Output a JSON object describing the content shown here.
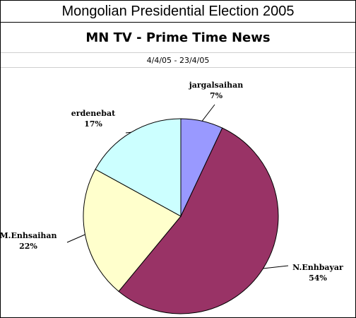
{
  "header": {
    "title": "Mongolian Presidential Election 2005",
    "subtitle": "MN TV - Prime Time News",
    "date_range": "4/4/05 - 23/4/05"
  },
  "chart_data": {
    "type": "pie",
    "title": "MN TV - Prime Time News",
    "subtitle": "4/4/05 - 23/4/05",
    "slices": [
      {
        "label": "jargalsaihan",
        "value": 7,
        "display": "7%",
        "color": "#9999ff"
      },
      {
        "label": "N.Enhbayar",
        "value": 54,
        "display": "54%",
        "color": "#993366"
      },
      {
        "label": "M.Enhsaihan",
        "value": 22,
        "display": "22%",
        "color": "#ffffcc"
      },
      {
        "label": "erdenebat",
        "value": 17,
        "display": "17%",
        "color": "#ccffff"
      }
    ]
  }
}
